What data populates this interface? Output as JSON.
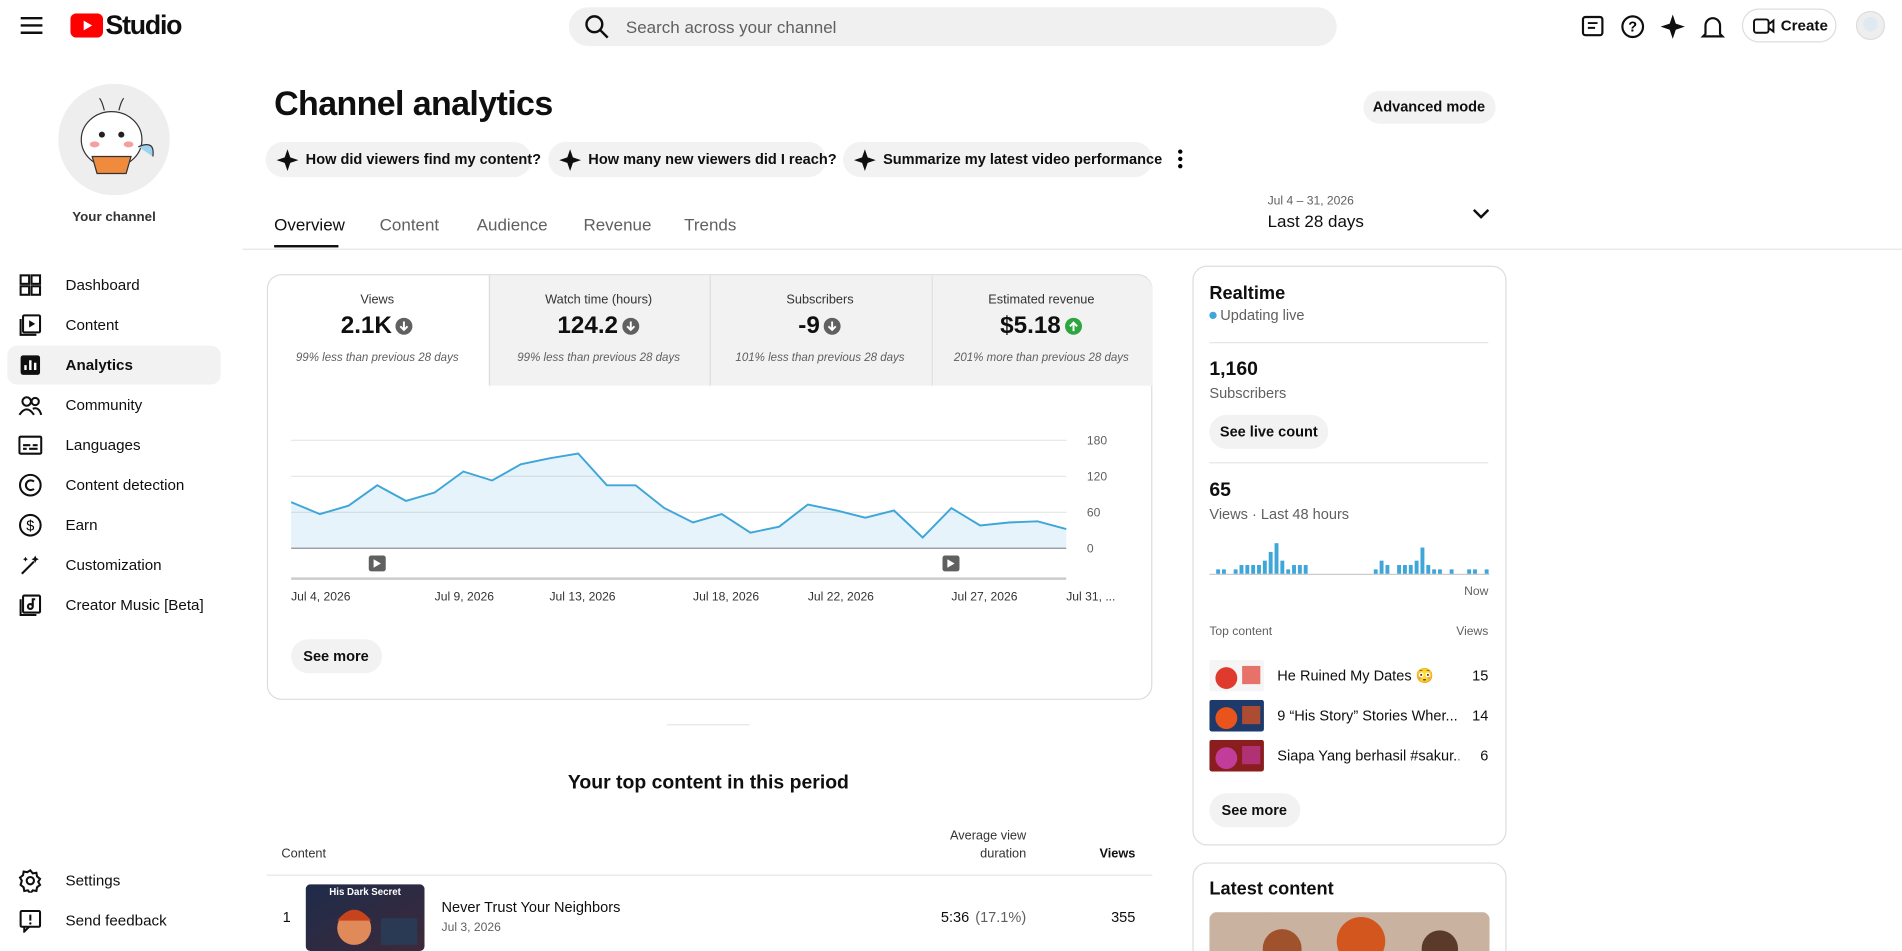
{
  "header": {
    "logo": "Studio",
    "search_placeholder": "Search across your channel",
    "create": "Create"
  },
  "sidebar": {
    "channel_label": "Your channel",
    "nav": [
      "Dashboard",
      "Content",
      "Analytics",
      "Community",
      "Languages",
      "Content detection",
      "Earn",
      "Customization",
      "Creator Music [Beta]"
    ],
    "active": 2,
    "footer_nav": [
      "Settings",
      "Send feedback"
    ]
  },
  "page": {
    "title": "Channel analytics",
    "advanced_mode": "Advanced mode",
    "prompts": [
      "How did viewers find my content?",
      "How many new viewers did I reach?",
      "Summarize my latest video performance"
    ],
    "tabs": [
      "Overview",
      "Content",
      "Audience",
      "Revenue",
      "Trends"
    ],
    "date_range": "Jul 4 – 31, 2026",
    "period": "Last 28 days"
  },
  "metrics": [
    {
      "label": "Views",
      "value": "2.1K",
      "comparison": "99% less than previous 28 days",
      "trend": "down"
    },
    {
      "label": "Watch time (hours)",
      "value": "124.2",
      "comparison": "99% less than previous 28 days",
      "trend": "down"
    },
    {
      "label": "Subscribers",
      "value": "-9",
      "comparison": "101% less than previous 28 days",
      "trend": "down"
    },
    {
      "label": "Estimated revenue",
      "value": "$5.18",
      "comparison": "201% more than previous 28 days",
      "trend": "up"
    }
  ],
  "views_chart": {
    "type": "line",
    "categories": [
      "Jul 4, 2026",
      null,
      null,
      null,
      null,
      "Jul 9, 2026",
      null,
      null,
      null,
      "Jul 13, 2026",
      null,
      null,
      null,
      null,
      "Jul 18, 2026",
      null,
      null,
      null,
      "Jul 22, 2026",
      null,
      null,
      null,
      null,
      "Jul 27, 2026",
      null,
      null,
      null,
      "Jul 31, ..."
    ],
    "values": [
      77,
      57,
      71,
      105,
      79,
      93,
      128,
      113,
      140,
      150,
      158,
      105,
      105,
      67,
      43,
      57,
      26,
      36,
      73,
      63,
      51,
      63,
      18,
      67,
      38,
      43,
      45,
      32
    ],
    "ylim": [
      0,
      180
    ],
    "yticks": [
      0,
      60,
      120,
      180
    ],
    "color": "#3ea6d8",
    "grid": true
  },
  "see_more": "See more",
  "top_content": {
    "title": "Your top content in this period",
    "columns": [
      "Content",
      "Average view duration",
      "Views"
    ],
    "rows": [
      {
        "rank": 1,
        "title": "Never Trust Your Neighbors",
        "date": "Jul 3, 2026",
        "avg_duration": "5:36",
        "avg_percent": "(17.1%)",
        "views": 355,
        "thumb_text": "His Dark Secret"
      }
    ]
  },
  "realtime": {
    "title": "Realtime",
    "status": "Updating live",
    "subscribers": "1,160",
    "subscribers_label": "Subscribers",
    "see_live_count": "See live count",
    "views": 65,
    "views_label": "Views · Last 48 hours",
    "chart": {
      "type": "bar",
      "values": [
        0,
        1,
        1,
        0,
        1,
        2,
        2,
        2,
        2,
        3,
        5,
        7,
        3,
        1,
        2,
        2,
        2,
        0,
        0,
        0,
        0,
        0,
        0,
        0,
        0,
        0,
        0,
        0,
        1,
        3,
        2,
        0,
        2,
        2,
        2,
        3,
        6,
        2,
        1,
        1,
        0,
        1,
        0,
        0,
        1,
        1,
        0,
        1
      ],
      "color": "#3ea6d8"
    },
    "now_label": "Now",
    "top_content_label": "Top content",
    "views_column": "Views",
    "items": [
      {
        "title": "He Ruined My Dates 😳",
        "views": 15
      },
      {
        "title": "9 “His Story” Stories Wher...",
        "views": 14
      },
      {
        "title": "Siapa Yang berhasil #sakur...",
        "views": 6
      }
    ],
    "see_more": "See more"
  },
  "latest_content": {
    "title": "Latest content"
  }
}
